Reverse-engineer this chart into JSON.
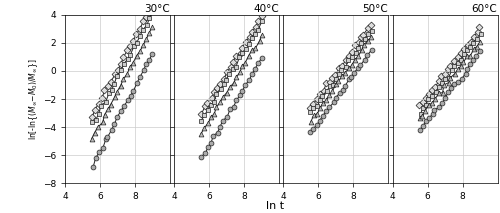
{
  "subplots": [
    {
      "title": "30°C"
    },
    {
      "title": "40°C"
    },
    {
      "title": "50°C"
    },
    {
      "title": "60°C"
    }
  ],
  "subplot_data": [
    {
      "x_start": 5.55,
      "x_end": 9.0,
      "n_points": 20,
      "rh_intercepts": [
        -6.7,
        -4.8,
        -3.8,
        -3.2
      ],
      "slope": 2.3
    },
    {
      "x_start": 5.55,
      "x_end": 9.0,
      "n_points": 20,
      "rh_intercepts": [
        -6.1,
        -4.4,
        -3.5,
        -3.0
      ],
      "slope": 2.0
    },
    {
      "x_start": 5.55,
      "x_end": 9.0,
      "n_points": 20,
      "rh_intercepts": [
        -4.4,
        -3.5,
        -3.0,
        -2.6
      ],
      "slope": 1.7
    },
    {
      "x_start": 5.55,
      "x_end": 9.0,
      "n_points": 20,
      "rh_intercepts": [
        -4.2,
        -3.4,
        -2.9,
        -2.5
      ],
      "slope": 1.6
    }
  ],
  "markers": [
    "o",
    "^",
    "s",
    "D"
  ],
  "marker_facecolors": [
    "#aaaaaa",
    "#bbbbbb",
    "#cccccc",
    "#dddddd"
  ],
  "marker_edgecolor": "#222222",
  "line_color": "#222222",
  "markersize": 3.5,
  "linewidth": 0.7,
  "ylabel": "ln[-ln{$(M_\\infty-M_0)/M_\\infty$}]",
  "xlabel": "ln t",
  "xlim": [
    4,
    10
  ],
  "ylim": [
    -8,
    4
  ],
  "xticks": [
    4,
    6,
    8
  ],
  "yticks": [
    -8,
    -6,
    -4,
    -2,
    0,
    2,
    4
  ],
  "grid_color": "#cccccc",
  "background_color": "#ffffff"
}
